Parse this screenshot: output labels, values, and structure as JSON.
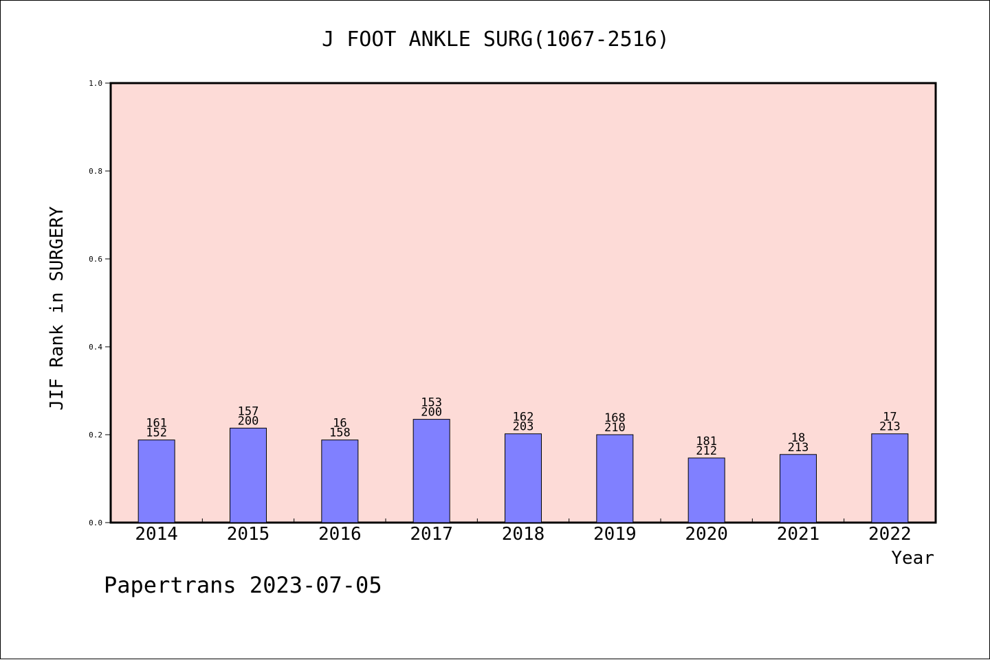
{
  "chart_data": {
    "type": "bar",
    "title": "J FOOT ANKLE SURG(1067-2516)",
    "xlabel": "Year",
    "ylabel": "JIF Rank in SURGERY",
    "ylim": [
      0,
      1.0
    ],
    "yticks": [
      "0.0",
      "0.2",
      "0.4",
      "0.6",
      "0.8",
      "1.0"
    ],
    "categories": [
      "2014",
      "2015",
      "2016",
      "2017",
      "2018",
      "2019",
      "2020",
      "2021",
      "2022"
    ],
    "values": [
      0.188,
      0.215,
      0.188,
      0.235,
      0.202,
      0.2,
      0.147,
      0.155,
      0.202
    ],
    "labels_top": [
      "161",
      "157",
      "16",
      "153",
      "162",
      "168",
      "181",
      "18",
      "17"
    ],
    "labels_bottom": [
      "152",
      "200",
      "158",
      "200",
      "203",
      "210",
      "212",
      "213",
      "213"
    ],
    "grid": false,
    "bar_color": "#8080ff",
    "plot_background": "#fddbd7"
  },
  "footer": "Papertrans 2023-07-05"
}
